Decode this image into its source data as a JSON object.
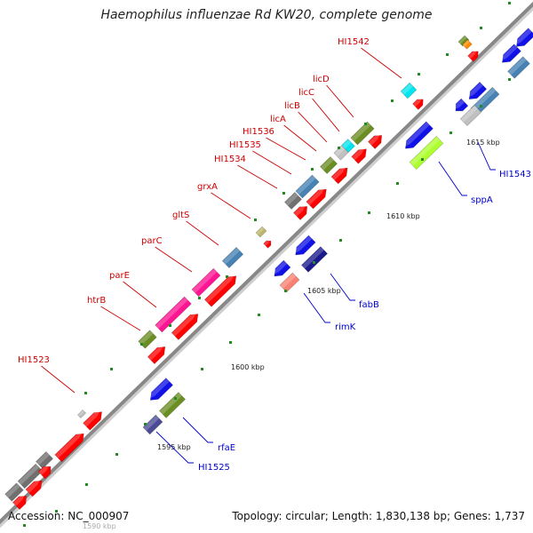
{
  "title": "Haemophilus influenzae Rd KW20, complete genome",
  "footer": {
    "accession": "Accession: NC_000907",
    "summary": "Topology: circular; Length: 1,830,138 bp; Genes: 1,737"
  },
  "scale_labels": [
    "1590 kbp",
    "1595 kbp",
    "1600 kbp",
    "1605 kbp",
    "1610 kbp",
    "1615 kbp"
  ],
  "colors": {
    "forward_label": "#cc0000",
    "reverse_label": "#0000cc",
    "backbone": "#888888"
  },
  "gene_labels_forward": [
    "HI1523",
    "htrB",
    "parE",
    "parC",
    "gltS",
    "grxA",
    "HI1534",
    "HI1535",
    "HI1536",
    "licA",
    "licB",
    "licC",
    "licD",
    "HI1542"
  ],
  "gene_labels_reverse": [
    "HI1525",
    "rfaE",
    "rimK",
    "fabB",
    "sppA",
    "HI1543"
  ]
}
